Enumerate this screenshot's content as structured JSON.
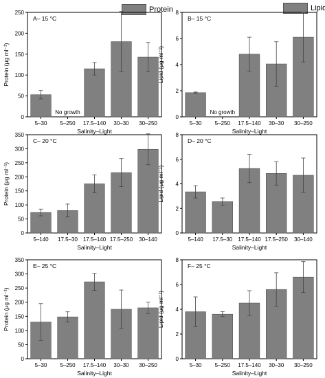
{
  "colors": {
    "bar": "#808080",
    "bar_edge": "#555555",
    "axis": "#000000",
    "text": "#000000"
  },
  "legend": {
    "protein": "Protein",
    "lipid": "Lipid"
  },
  "chart_data": [
    {
      "panel": "A",
      "type": "bar",
      "title": "A– 15 °C",
      "xlabel": "Salinity–Light",
      "ylabel": "Protein (μg ml⁻¹)",
      "categories": [
        "5–30",
        "5–250",
        "17.5–140",
        "30–30",
        "30–250"
      ],
      "values": [
        53,
        null,
        115,
        180,
        143
      ],
      "errors": [
        10,
        null,
        15,
        72,
        35
      ],
      "annotation": {
        "text": "No growth",
        "category_index": 1
      },
      "ylim": [
        0,
        250
      ],
      "yticks": [
        0,
        50,
        100,
        150,
        200,
        250
      ]
    },
    {
      "panel": "B",
      "type": "bar",
      "title": "B– 15 °C",
      "xlabel": "Salinity–Light",
      "ylabel": "Lipid (μg ml⁻¹)",
      "categories": [
        "5–30",
        "5–250",
        "17.5–140",
        "30–30",
        "30–250"
      ],
      "values": [
        1.85,
        null,
        4.8,
        4.05,
        6.1
      ],
      "errors": [
        0.05,
        null,
        1.3,
        1.7,
        1.9
      ],
      "annotation": {
        "text": "No growth",
        "category_index": 1
      },
      "ylim": [
        0,
        8
      ],
      "yticks": [
        0,
        2,
        4,
        6,
        8
      ]
    },
    {
      "panel": "C",
      "type": "bar",
      "title": "C– 20 °C",
      "xlabel": "Salinity–Light",
      "ylabel": "Protein (μg ml⁻¹)",
      "categories": [
        "5–140",
        "17.5–30",
        "17.5–140",
        "17.5–250",
        "30–140"
      ],
      "values": [
        73,
        80,
        175,
        215,
        298
      ],
      "errors": [
        12,
        23,
        32,
        50,
        55
      ],
      "ylim": [
        0,
        350
      ],
      "yticks": [
        0,
        50,
        100,
        150,
        200,
        250,
        300,
        350
      ]
    },
    {
      "panel": "D",
      "type": "bar",
      "title": "D– 20 °C",
      "xlabel": "Salinity–Light",
      "ylabel": "Lipid (μg ml⁻¹)",
      "categories": [
        "5–140",
        "17.5–30",
        "17.5–140",
        "17.5–250",
        "30–140"
      ],
      "values": [
        3.35,
        2.55,
        5.25,
        4.85,
        4.7
      ],
      "errors": [
        0.5,
        0.3,
        1.15,
        0.95,
        1.4
      ],
      "ylim": [
        0,
        8
      ],
      "yticks": [
        0,
        2,
        4,
        6,
        8
      ]
    },
    {
      "panel": "E",
      "type": "bar",
      "title": "E– 25 °C",
      "xlabel": "Salinity–Light",
      "ylabel": "Protein (μg ml⁻¹)",
      "categories": [
        "5–30",
        "5–250",
        "17.5–140",
        "30–30",
        "30–250"
      ],
      "values": [
        130,
        148,
        272,
        175,
        180
      ],
      "errors": [
        65,
        18,
        30,
        68,
        20
      ],
      "ylim": [
        0,
        350
      ],
      "yticks": [
        0,
        50,
        100,
        150,
        200,
        250,
        300,
        350
      ]
    },
    {
      "panel": "F",
      "type": "bar",
      "title": "F– 25 °C",
      "xlabel": "Salinity–Light",
      "ylabel": "Lipid (μg ml⁻¹)",
      "categories": [
        "5–30",
        "5–250",
        "17.5–140",
        "30–30",
        "30–250"
      ],
      "values": [
        3.8,
        3.6,
        4.5,
        5.6,
        6.6
      ],
      "errors": [
        1.2,
        0.2,
        1.0,
        1.35,
        1.25
      ],
      "ylim": [
        0,
        8
      ],
      "yticks": [
        0,
        2,
        4,
        6,
        8
      ]
    }
  ]
}
